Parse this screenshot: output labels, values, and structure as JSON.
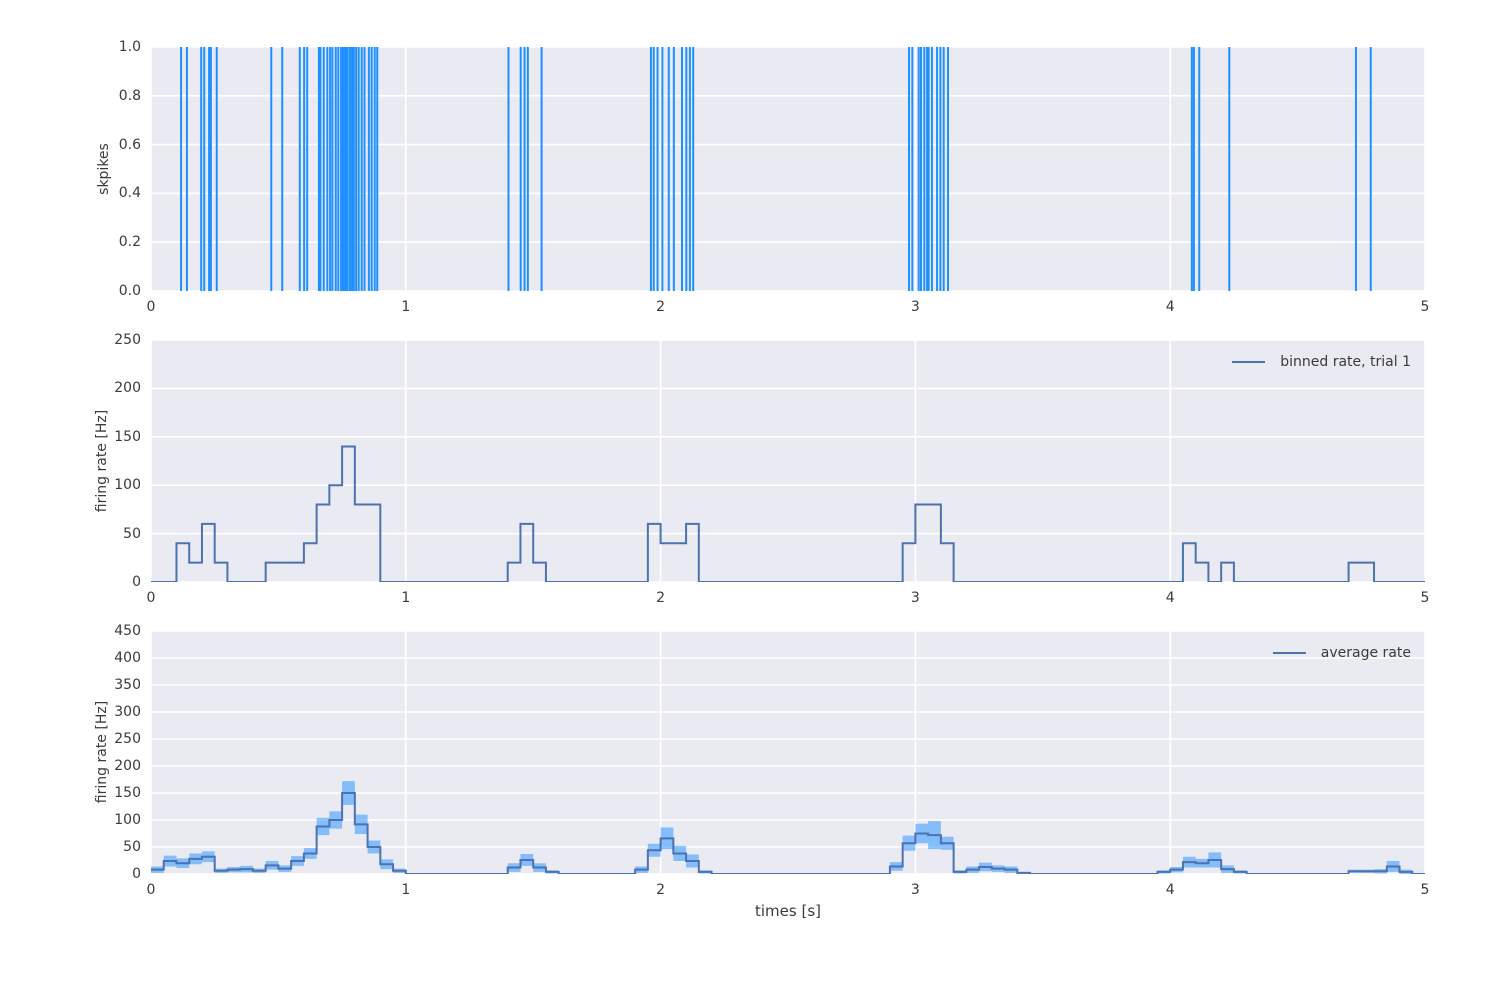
{
  "figure": {
    "background": "#ffffff",
    "axes_background": "#eaeaf2",
    "grid_color": "#ffffff",
    "text_color": "#3b3b3b",
    "spike_color": "#1e90ff",
    "line_color": "#4c72b0",
    "band_color": "rgba(30,144,255,0.5)"
  },
  "chart_data": [
    {
      "type": "raster",
      "title": "",
      "ylabel": "skpikes",
      "xlim": [
        0,
        5
      ],
      "ylim": [
        0,
        1
      ],
      "xtick_labels": [
        "0",
        "1",
        "2",
        "3",
        "4",
        "5"
      ],
      "ytick_labels": [
        "0.0",
        "0.2",
        "0.4",
        "0.6",
        "0.8",
        "1.0"
      ],
      "grid": true,
      "spike_times_s": [
        0.118,
        0.141,
        0.197,
        0.209,
        0.228,
        0.235,
        0.258,
        0.472,
        0.515,
        0.584,
        0.601,
        0.613,
        0.659,
        0.665,
        0.678,
        0.692,
        0.703,
        0.712,
        0.725,
        0.735,
        0.746,
        0.752,
        0.758,
        0.765,
        0.772,
        0.781,
        0.789,
        0.796,
        0.805,
        0.815,
        0.827,
        0.838,
        0.855,
        0.866,
        0.878,
        0.888,
        1.403,
        1.451,
        1.466,
        1.479,
        1.533,
        1.962,
        1.973,
        1.988,
        2.007,
        2.032,
        2.052,
        2.084,
        2.101,
        2.115,
        2.128,
        2.975,
        2.988,
        3.013,
        3.022,
        3.035,
        3.046,
        3.052,
        3.065,
        3.085,
        3.098,
        3.111,
        3.128,
        4.085,
        4.093,
        4.114,
        4.232,
        4.729,
        4.787
      ]
    },
    {
      "type": "line",
      "subtype": "step-post histogram of firing rate",
      "legend": "binned rate, trial 1",
      "legend_position": "upper right",
      "ylabel": "firing rate [Hz]",
      "xlim": [
        0,
        5
      ],
      "ylim": [
        0,
        250
      ],
      "xtick_labels": [
        "0",
        "1",
        "2",
        "3",
        "4",
        "5"
      ],
      "ytick_labels": [
        "0",
        "50",
        "100",
        "150",
        "200",
        "250"
      ],
      "grid": true,
      "bin_width_s": 0.05,
      "rates_hz": [
        0,
        0,
        40,
        20,
        60,
        20,
        0,
        0,
        0,
        20,
        20,
        20,
        40,
        80,
        100,
        140,
        80,
        80,
        0,
        0,
        0,
        0,
        0,
        0,
        0,
        0,
        0,
        0,
        20,
        60,
        20,
        0,
        0,
        0,
        0,
        0,
        0,
        0,
        0,
        60,
        40,
        40,
        60,
        0,
        0,
        0,
        0,
        0,
        0,
        0,
        0,
        0,
        0,
        0,
        0,
        0,
        0,
        0,
        0,
        40,
        80,
        80,
        40,
        0,
        0,
        0,
        0,
        0,
        0,
        0,
        0,
        0,
        0,
        0,
        0,
        0,
        0,
        0,
        0,
        0,
        0,
        40,
        20,
        0,
        20,
        0,
        0,
        0,
        0,
        0,
        0,
        0,
        0,
        0,
        20,
        20,
        0,
        0,
        0,
        0
      ]
    },
    {
      "type": "line",
      "subtype": "step-post mean firing rate with error band (mean ± sem)",
      "legend": "average rate",
      "legend_position": "upper right",
      "xlabel": "times [s]",
      "ylabel": "firing rate [Hz]",
      "xlim": [
        0,
        5
      ],
      "ylim": [
        0,
        450
      ],
      "xtick_labels": [
        "0",
        "1",
        "2",
        "3",
        "4",
        "5"
      ],
      "ytick_labels": [
        "0",
        "50",
        "100",
        "150",
        "200",
        "250",
        "300",
        "350",
        "400",
        "450"
      ],
      "grid": true,
      "bin_width_s": 0.05,
      "mean_hz": [
        8,
        24,
        20,
        28,
        32,
        6,
        8,
        9,
        6,
        16,
        10,
        24,
        38,
        88,
        100,
        150,
        92,
        50,
        18,
        6,
        0,
        0,
        0,
        0,
        0,
        0,
        0,
        0,
        12,
        26,
        12,
        4,
        0,
        0,
        0,
        0,
        0,
        0,
        8,
        44,
        66,
        38,
        24,
        4,
        0,
        0,
        0,
        0,
        0,
        0,
        0,
        0,
        0,
        0,
        0,
        0,
        0,
        0,
        14,
        57,
        75,
        72,
        57,
        4,
        8,
        13,
        10,
        8,
        2,
        0,
        0,
        0,
        0,
        0,
        0,
        0,
        0,
        0,
        0,
        4,
        8,
        22,
        20,
        26,
        9,
        4,
        0,
        0,
        0,
        0,
        0,
        0,
        0,
        0,
        5,
        5,
        5,
        14,
        4,
        0
      ],
      "sem_hz": [
        6,
        10,
        9,
        10,
        10,
        4,
        5,
        6,
        4,
        8,
        6,
        9,
        10,
        16,
        16,
        22,
        18,
        12,
        9,
        4,
        0,
        0,
        0,
        0,
        0,
        0,
        0,
        0,
        8,
        11,
        8,
        3,
        0,
        0,
        0,
        0,
        0,
        0,
        6,
        12,
        20,
        14,
        12,
        3,
        0,
        0,
        0,
        0,
        0,
        0,
        0,
        0,
        0,
        0,
        0,
        0,
        0,
        0,
        8,
        14,
        18,
        26,
        12,
        3,
        6,
        8,
        6,
        6,
        2,
        0,
        0,
        0,
        0,
        0,
        0,
        0,
        0,
        0,
        0,
        3,
        5,
        10,
        8,
        14,
        7,
        3,
        0,
        0,
        0,
        0,
        0,
        0,
        0,
        0,
        3,
        3,
        4,
        10,
        4,
        0
      ]
    }
  ]
}
